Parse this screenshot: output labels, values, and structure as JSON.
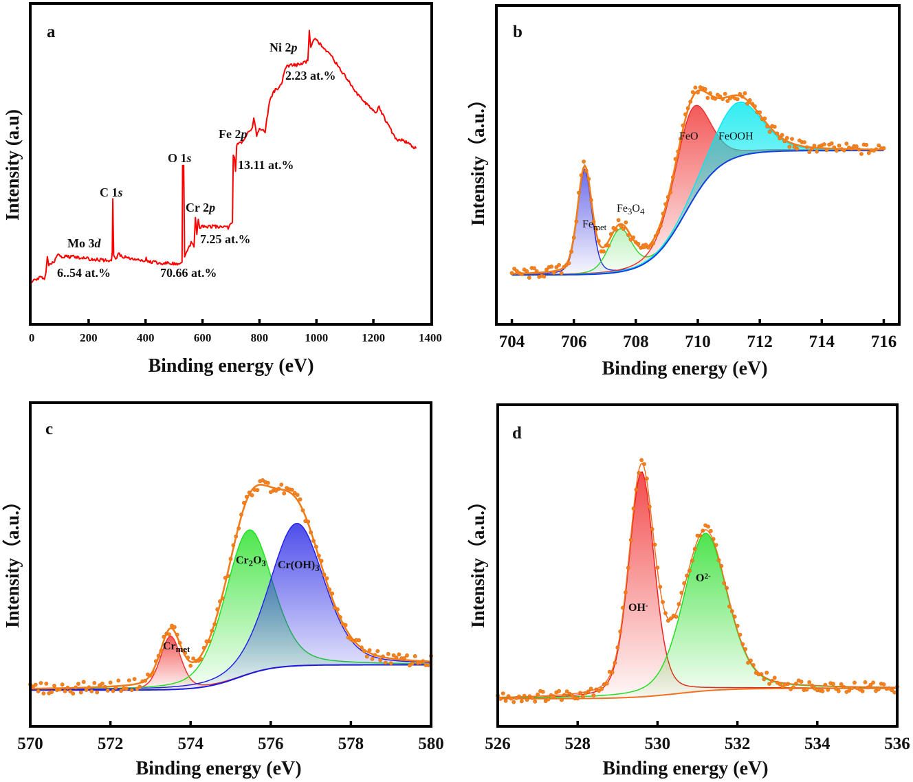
{
  "chart_data": [
    {
      "panel": "a",
      "type": "line",
      "title": "",
      "xlabel": "Binding energy (eV)",
      "ylabel": "Intensity (a.u)",
      "xlim": [
        -5,
        1405
      ],
      "ylim": [
        0,
        100
      ],
      "xticks": [
        0,
        200,
        400,
        600,
        800,
        1000,
        1200,
        1400
      ],
      "grid": false,
      "series": [
        {
          "color": "#ff0000",
          "x": [
            0,
            20,
            30,
            45,
            50,
            55,
            60,
            70,
            80,
            90,
            100,
            150,
            200,
            280,
            283,
            285,
            288,
            295,
            305,
            320,
            380,
            400,
            402,
            405,
            450,
            520,
            528,
            530,
            534,
            537,
            550,
            560,
            570,
            575,
            580,
            585,
            590,
            600,
            650,
            690,
            705,
            708,
            712,
            716,
            720,
            740,
            760,
            775,
            780,
            790,
            800,
            820,
            835,
            850,
            870,
            880,
            890,
            900,
            940,
            960,
            970,
            975,
            980,
            990,
            1000,
            1010,
            1050,
            1100,
            1150,
            1200,
            1210,
            1220,
            1230,
            1280,
            1300,
            1350
          ],
          "y": [
            13.3,
            14.0,
            15.1,
            14.0,
            16.1,
            21.1,
            18.3,
            18.7,
            19.8,
            21.9,
            21.1,
            21.1,
            20.4,
            19.8,
            22.6,
            39.1,
            21.5,
            20.4,
            21.9,
            21.1,
            19.8,
            19.8,
            20.9,
            19.6,
            19.1,
            18.9,
            19.4,
            49.5,
            49.5,
            21.5,
            23.7,
            25.4,
            24.1,
            33.3,
            28.0,
            32.7,
            30.1,
            30.5,
            30.5,
            30.1,
            31.8,
            52.7,
            52.0,
            47.7,
            55.9,
            57.0,
            59.6,
            61.3,
            64.1,
            59.1,
            60.6,
            60.2,
            69.2,
            72.5,
            74.0,
            75.7,
            80.0,
            80.6,
            80.9,
            81.7,
            82.2,
            91.6,
            86.0,
            88.2,
            88.8,
            87.7,
            83.9,
            77.4,
            71.0,
            66.7,
            66.2,
            68.2,
            65.6,
            57.6,
            57.6,
            54.8
          ]
        }
      ],
      "annotations": [
        {
          "segments": [
            {
              "t": "Ni 2"
            },
            {
              "t": "p",
              "style": "italic"
            }
          ]
        },
        {
          "segments": [
            {
              "t": "2.23 at.%"
            }
          ]
        },
        {
          "segments": [
            {
              "t": "Fe 2"
            },
            {
              "t": "p",
              "style": "italic"
            }
          ]
        },
        {
          "segments": [
            {
              "t": "13.11 at.%"
            }
          ]
        },
        {
          "segments": [
            {
              "t": "O 1"
            },
            {
              "t": "s",
              "style": "italic"
            }
          ]
        },
        {
          "segments": [
            {
              "t": "C 1"
            },
            {
              "t": "s",
              "style": "italic"
            }
          ]
        },
        {
          "segments": [
            {
              "t": "Cr 2"
            },
            {
              "t": "p",
              "style": "italic"
            }
          ]
        },
        {
          "segments": [
            {
              "t": "7.25 at.%"
            }
          ]
        },
        {
          "segments": [
            {
              "t": "Mo 3"
            },
            {
              "t": "d",
              "style": "italic"
            }
          ]
        },
        {
          "segments": [
            {
              "t": "6..54 at.%"
            }
          ]
        },
        {
          "segments": [
            {
              "t": "70.66 at.%"
            }
          ]
        }
      ]
    },
    {
      "panel": "b",
      "type": "line",
      "title": "",
      "xlabel": "Binding energy (eV)",
      "ylabel": "Intensity（a.u.）",
      "xlim": [
        703.5,
        716.5
      ],
      "ylim": [
        0,
        1
      ],
      "xticks": [
        704,
        706,
        708,
        710,
        712,
        714,
        716
      ],
      "grid": false,
      "fit_range": [
        704,
        716
      ],
      "data_color": "#f5841f",
      "envelope_color": "#f07d1a",
      "background": {
        "lo": 0.155,
        "hi": 0.545,
        "center": 709.6,
        "width": 1.15,
        "color": "#1040e0"
      },
      "components": [
        {
          "name": "Fe met",
          "center": 706.35,
          "fwhm": 0.55,
          "height": 0.33,
          "color": "#2a2ae0"
        },
        {
          "name": "Fe3O4",
          "center": 707.5,
          "fwhm": 0.9,
          "height": 0.135,
          "color": "#33d633"
        },
        {
          "name": "FeO",
          "center": 709.8,
          "fwhm": 1.35,
          "height": 0.29,
          "color": "#f03030"
        },
        {
          "name": "FeOOH",
          "center": 711.3,
          "fwhm": 1.8,
          "height": 0.17,
          "color": "#00e8ee"
        }
      ],
      "annotations": [
        {
          "segments": [
            {
              "t": "Fe"
            },
            {
              "t": "met",
              "style": "sub"
            }
          ]
        },
        {
          "segments": [
            {
              "t": "Fe"
            },
            {
              "t": "3",
              "style": "sub"
            },
            {
              "t": "O"
            },
            {
              "t": "4",
              "style": "sub"
            }
          ]
        },
        {
          "segments": [
            {
              "t": "FeO"
            }
          ]
        },
        {
          "segments": [
            {
              "t": "FeOOH"
            }
          ]
        }
      ]
    },
    {
      "panel": "c",
      "type": "line",
      "title": "",
      "xlabel": "Binding energy (eV)",
      "ylabel": "Intensity（a.u.）",
      "xlim": [
        570,
        580
      ],
      "ylim": [
        0,
        1
      ],
      "xticks": [
        570,
        572,
        574,
        576,
        578,
        580
      ],
      "grid": false,
      "fit_range": [
        570,
        580
      ],
      "data_color": "#f5841f",
      "envelope_color": "#f07d1a",
      "background": {
        "lo": 0.112,
        "hi": 0.19,
        "center": 575.2,
        "width": 0.9,
        "color": "#1a1ae0"
      },
      "components": [
        {
          "name": "Cr met",
          "center": 573.5,
          "fwhm": 0.6,
          "height": 0.165,
          "color": "#f03030"
        },
        {
          "name": "Cr2O3",
          "center": 575.45,
          "fwhm": 1.4,
          "height": 0.445,
          "color": "#22e022"
        },
        {
          "name": "Cr(OH)3",
          "center": 576.65,
          "fwhm": 1.6,
          "height": 0.44,
          "color": "#2222e6"
        }
      ],
      "annotations": [
        {
          "segments": [
            {
              "t": "Cr"
            },
            {
              "t": "met",
              "style": "sub"
            }
          ]
        },
        {
          "segments": [
            {
              "t": "Cr"
            },
            {
              "t": "2",
              "style": "sub"
            },
            {
              "t": "O"
            },
            {
              "t": "3",
              "style": "sub"
            }
          ]
        },
        {
          "segments": [
            {
              "t": "Cr(OH)"
            },
            {
              "t": "3",
              "style": "sub"
            }
          ]
        }
      ]
    },
    {
      "panel": "d",
      "type": "line",
      "title": "",
      "xlabel": "Binding energy (eV)",
      "ylabel": "Intensity（a.u.）",
      "xlim": [
        526,
        536
      ],
      "ylim": [
        0,
        1
      ],
      "xticks": [
        526,
        528,
        530,
        532,
        534,
        536
      ],
      "grid": false,
      "fit_range": [
        526,
        536
      ],
      "data_color": "#f5841f",
      "envelope_color": "#f07020",
      "background": {
        "lo": 0.086,
        "hi": 0.118,
        "center": 530.5,
        "width": 1.2,
        "color": "#f07020"
      },
      "components": [
        {
          "name": "OH-",
          "center": 529.6,
          "fwhm": 0.75,
          "height": 0.7,
          "color": "#f02020"
        },
        {
          "name": "O2-",
          "center": 531.2,
          "fwhm": 1.3,
          "height": 0.49,
          "color": "#22dd22"
        }
      ],
      "annotations": [
        {
          "segments": [
            {
              "t": "OH"
            },
            {
              "t": "-",
              "style": "super"
            }
          ]
        },
        {
          "segments": [
            {
              "t": "O"
            },
            {
              "t": "2-",
              "style": "super"
            }
          ]
        }
      ]
    }
  ]
}
